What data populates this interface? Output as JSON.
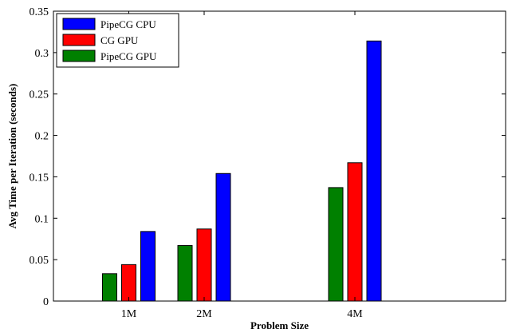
{
  "chart_data": {
    "type": "bar",
    "xlabel": "Problem Size",
    "ylabel": "Avg Time per Iteration (seconds)",
    "x_positions": [
      1,
      2,
      4
    ],
    "categories": [
      "1M",
      "2M",
      "4M"
    ],
    "xlim": [
      0,
      6
    ],
    "ylim": [
      0,
      0.35
    ],
    "yticks": [
      0,
      0.05,
      0.1,
      0.15,
      0.2,
      0.25,
      0.3,
      0.35
    ],
    "ytick_labels": [
      "0",
      "0.05",
      "0.1",
      "0.15",
      "0.2",
      "0.25",
      "0.3",
      "0.35"
    ],
    "grid": false,
    "legend_position": "top-left",
    "series": [
      {
        "name": "PipeCG GPU",
        "color": "#008000",
        "values": [
          0.033,
          0.067,
          0.137
        ]
      },
      {
        "name": "CG GPU",
        "color": "#ff0000",
        "values": [
          0.044,
          0.087,
          0.167
        ]
      },
      {
        "name": "PipeCG CPU",
        "color": "#0000ff",
        "values": [
          0.084,
          0.154,
          0.314
        ]
      }
    ],
    "legend_order": [
      "PipeCG CPU",
      "CG GPU",
      "PipeCG GPU"
    ]
  }
}
